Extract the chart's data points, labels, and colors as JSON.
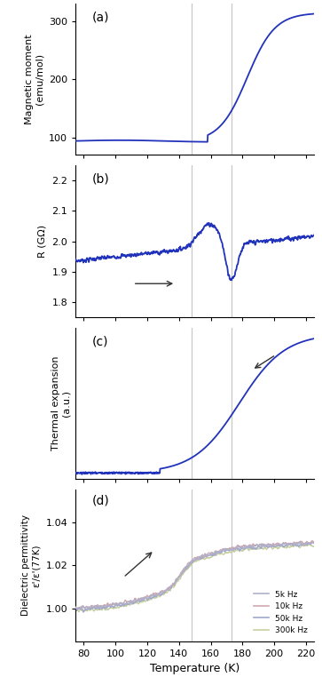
{
  "title": "",
  "xlabel": "Temperature (K)",
  "x_min": 75,
  "x_max": 225,
  "vline1": 148,
  "vline2": 173,
  "vline_color": "#c8c8c8",
  "line_color": "#2233bb",
  "arrow_color": "#333333",
  "panel_labels": [
    "(a)",
    "(b)",
    "(c)",
    "(d)"
  ],
  "panel_a": {
    "ylabel": "Magnetic moment\n(emu/mol)",
    "yticks": [
      100,
      200,
      300
    ],
    "ylim": [
      70,
      330
    ]
  },
  "panel_b": {
    "ylabel": "R (GΩ)",
    "yticks": [
      1.8,
      1.9,
      2.0,
      2.1,
      2.2
    ],
    "ylim": [
      1.75,
      2.25
    ]
  },
  "panel_c": {
    "ylabel": "Thermal expansion\n(a.u.)",
    "ylim": [
      0,
      1
    ]
  },
  "panel_d": {
    "ylabel": "Dielectric permittivity\nε'/ε'(77K)",
    "yticks": [
      1.0,
      1.02,
      1.04
    ],
    "ylim": [
      0.985,
      1.055
    ],
    "legend_labels": [
      "5k Hz",
      "10k Hz",
      "50k Hz",
      "300k Hz"
    ],
    "legend_colors": [
      "#b0b0c8",
      "#d0a8b0",
      "#a0a8cc",
      "#c8d0a0"
    ]
  }
}
